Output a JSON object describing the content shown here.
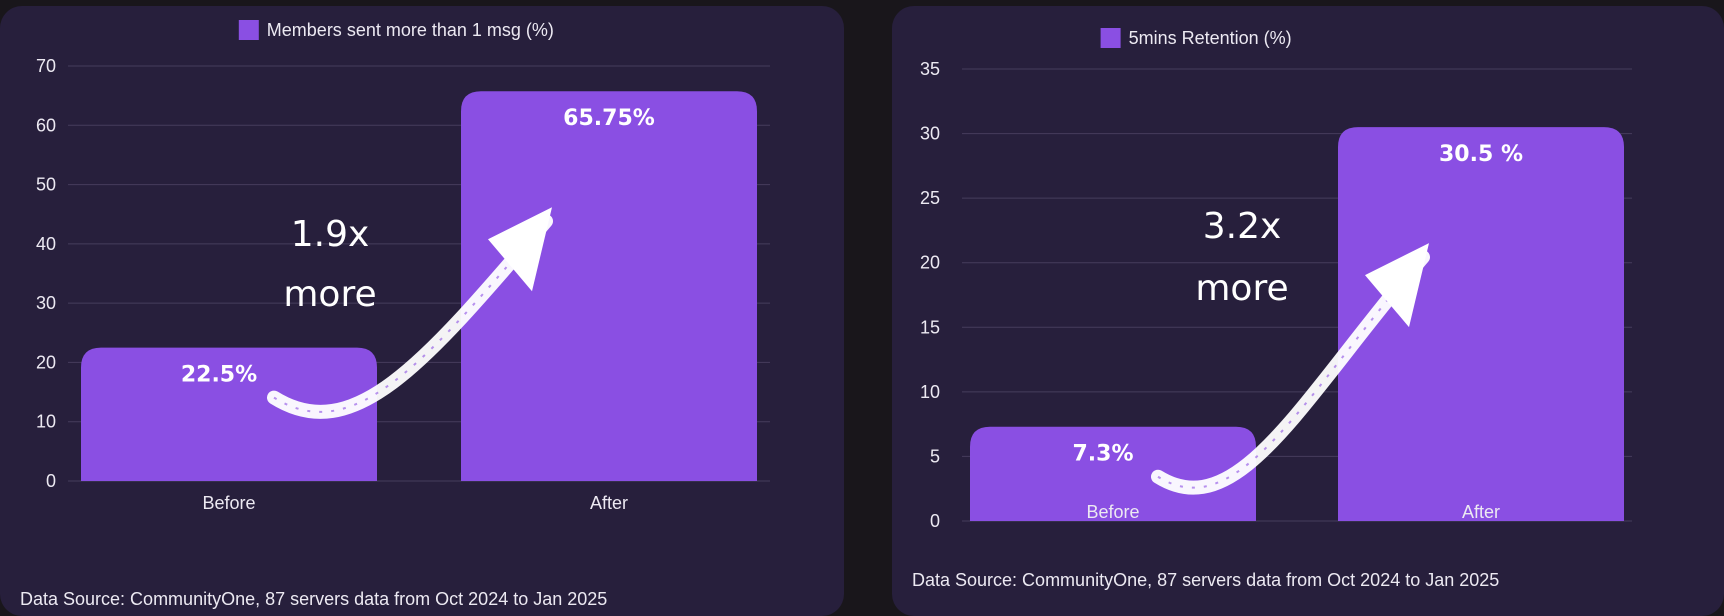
{
  "colors": {
    "background": "#19161b",
    "panel": "#271f3c",
    "bar": "#8a4fe3",
    "gridline": "#463d5c",
    "text": "#ece9f2",
    "arrow": "#ffffff"
  },
  "chart_data": [
    {
      "type": "bar",
      "categories": [
        "Before",
        "After"
      ],
      "series": [
        {
          "name": "Members sent more than 1 msg (%)",
          "values": [
            22.5,
            65.75
          ]
        }
      ],
      "value_labels": [
        "22.5%",
        "65.75%"
      ],
      "ylim": [
        0,
        70
      ],
      "yticks": [
        "0",
        "10",
        "20",
        "30",
        "40",
        "50",
        "60",
        "70"
      ],
      "grid": true,
      "legend": "top-center",
      "annotation": {
        "line1": "1.9x",
        "line2": "more"
      },
      "source": "Data Source: CommunityOne, 87 servers data from Oct 2024 to Jan 2025"
    },
    {
      "type": "bar",
      "categories": [
        "Before",
        "After"
      ],
      "series": [
        {
          "name": "5mins Retention (%)",
          "values": [
            7.3,
            30.5
          ]
        }
      ],
      "value_labels": [
        "7.3%",
        "30.5 %"
      ],
      "ylim": [
        0,
        35
      ],
      "yticks": [
        "0",
        "5",
        "10",
        "15",
        "20",
        "25",
        "30",
        "35"
      ],
      "grid": true,
      "legend": "top-center",
      "annotation": {
        "line1": "3.2x",
        "line2": "more"
      },
      "source": "Data Source: CommunityOne, 87 servers data from Oct 2024 to Jan 2025"
    }
  ]
}
